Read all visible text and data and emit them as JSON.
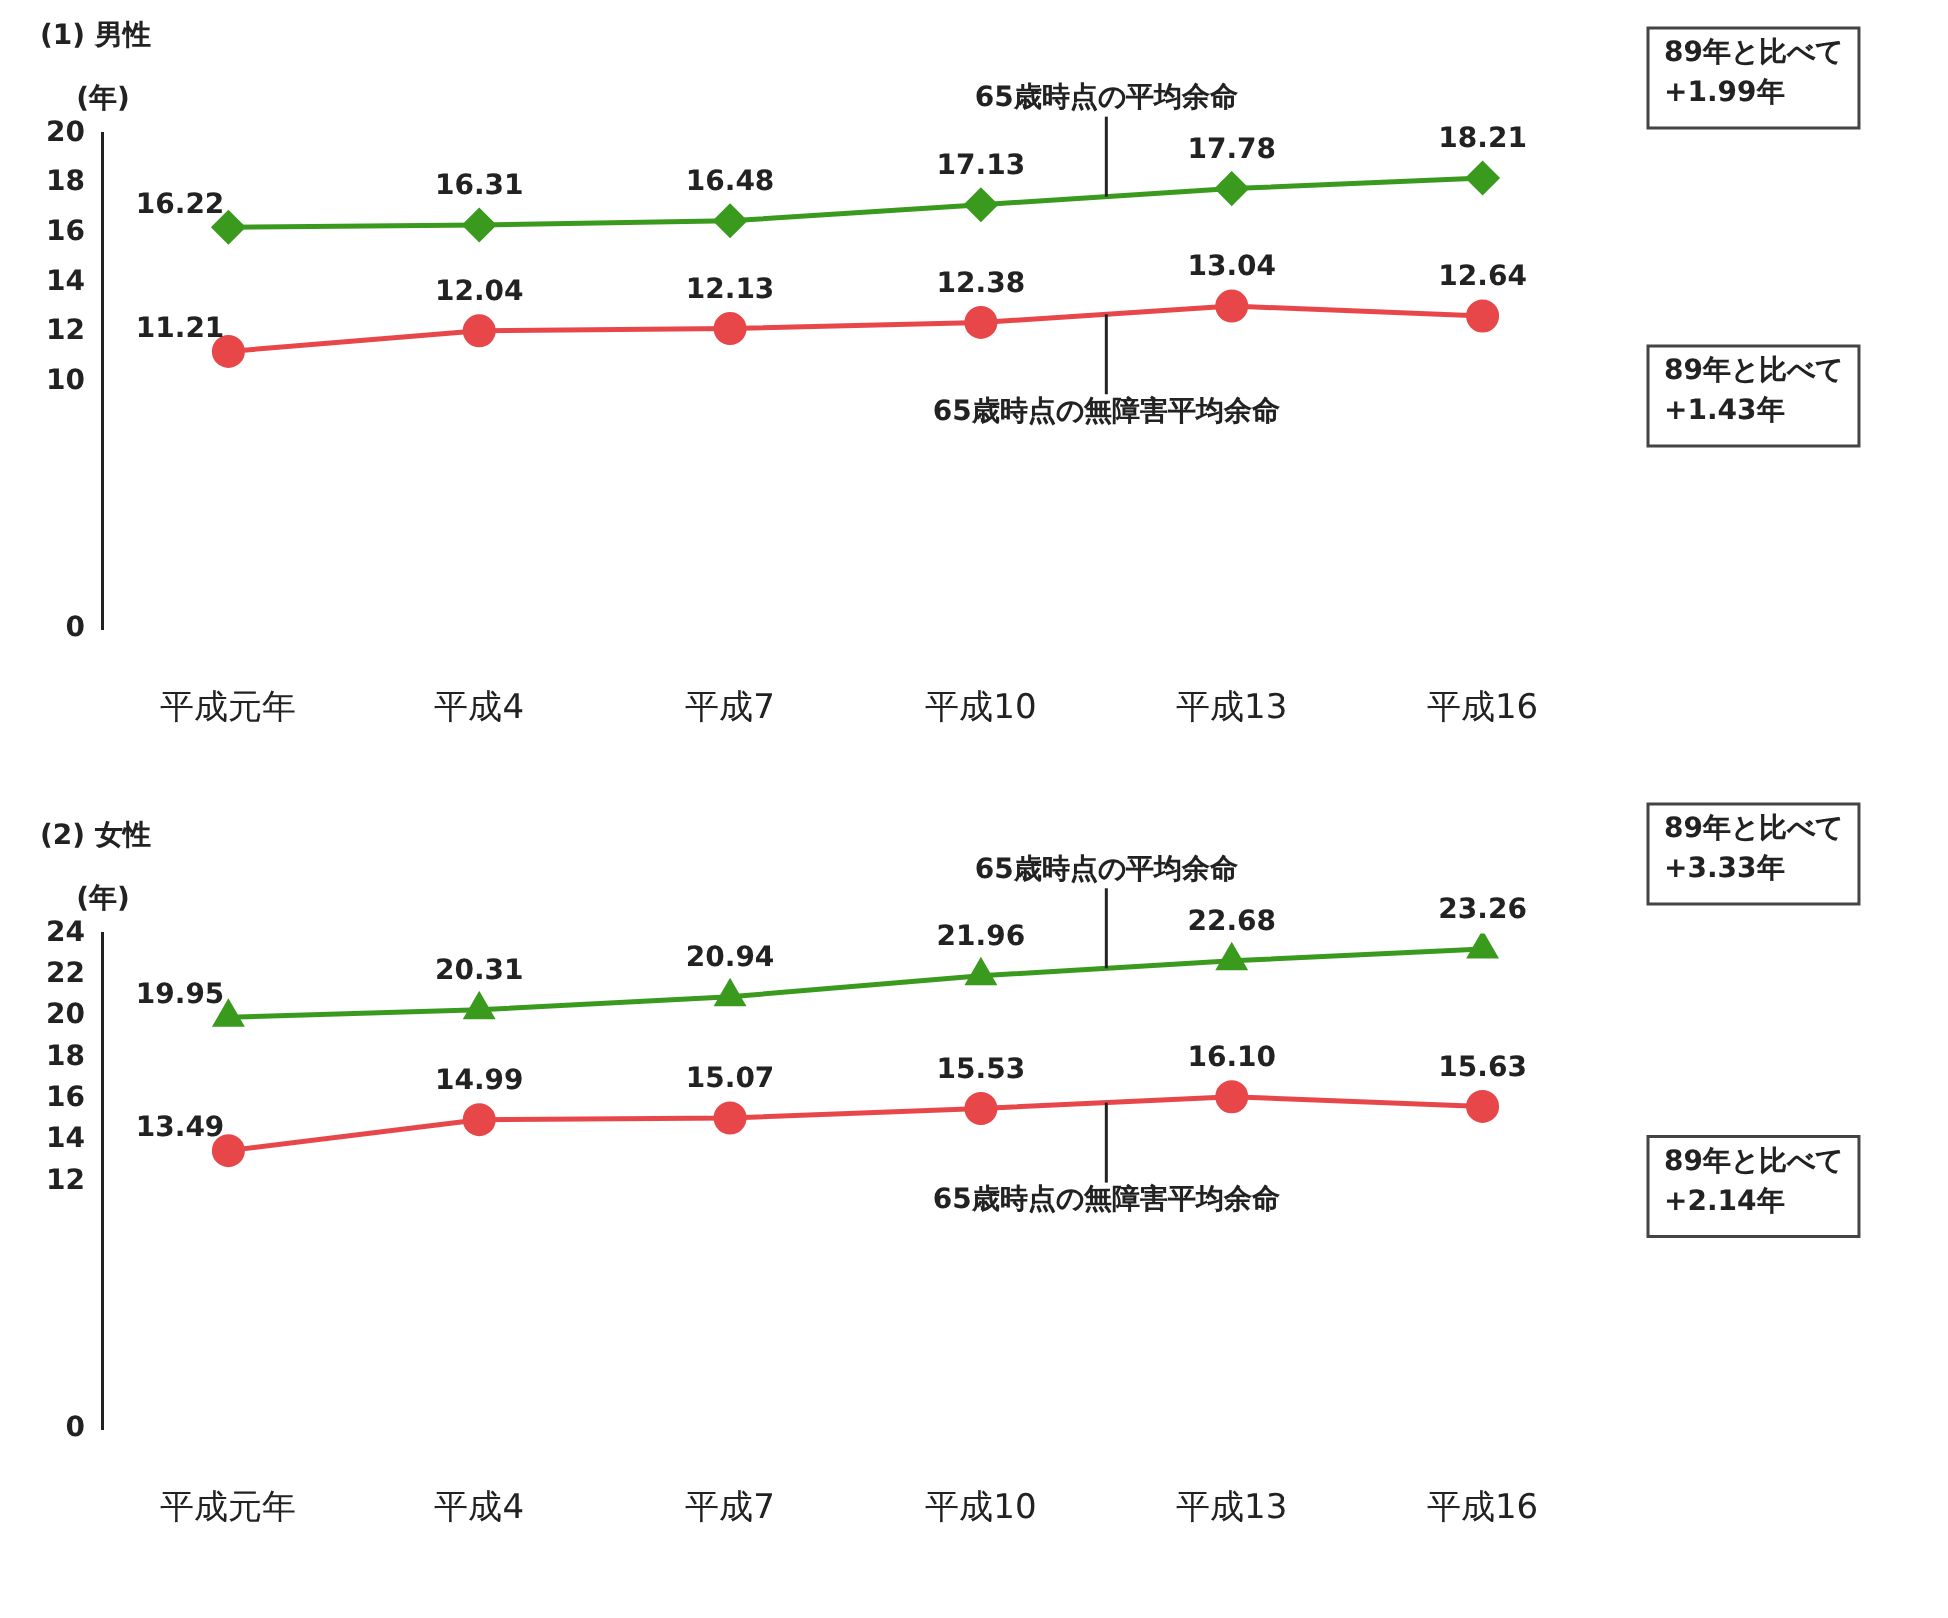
{
  "chart_data": [
    {
      "type": "line",
      "title": "(1) 男性",
      "ylabel": "(年)",
      "categories": [
        "平成元年",
        "平成4",
        "平成7",
        "平成10",
        "平成13",
        "平成16"
      ],
      "series": [
        {
          "name": "65歳時点の平均余命",
          "color": "#3a9a1e",
          "marker": "diamond",
          "values": [
            16.22,
            16.31,
            16.48,
            17.13,
            17.78,
            18.21
          ],
          "value_labels": [
            "16.22",
            "16.31",
            "16.48",
            "17.13",
            "17.78",
            "18.21"
          ]
        },
        {
          "name": "65歳時点の無障害平均余命",
          "color": "#e8474a",
          "marker": "circle",
          "values": [
            11.21,
            12.04,
            12.13,
            12.38,
            13.04,
            12.64
          ],
          "value_labels": [
            "11.21",
            "12.04",
            "12.13",
            "12.38",
            "13.04",
            "12.64"
          ]
        }
      ],
      "ylim": [
        0,
        20
      ],
      "yticks": [
        0,
        10,
        12,
        14,
        16,
        18,
        20
      ],
      "legend": false,
      "grid": false,
      "annotations": [
        "89年と比べて\n+1.99年",
        "89年と比べて\n+1.43年"
      ]
    },
    {
      "type": "line",
      "title": "(2) 女性",
      "ylabel": "(年)",
      "categories": [
        "平成元年",
        "平成4",
        "平成7",
        "平成10",
        "平成13",
        "平成16"
      ],
      "series": [
        {
          "name": "65歳時点の平均余命",
          "color": "#3a9a1e",
          "marker": "triangle",
          "values": [
            19.95,
            20.31,
            20.94,
            21.96,
            22.68,
            23.26
          ],
          "value_labels": [
            "19.95",
            "20.31",
            "20.94",
            "21.96",
            "22.68",
            "23.26"
          ]
        },
        {
          "name": "65歳時点の無障害平均余命",
          "color": "#e8474a",
          "marker": "circle",
          "values": [
            13.49,
            14.99,
            15.07,
            15.53,
            16.1,
            15.63
          ],
          "value_labels": [
            "13.49",
            "14.99",
            "15.07",
            "15.53",
            "16.10",
            "15.63"
          ]
        }
      ],
      "ylim": [
        0,
        24
      ],
      "yticks": [
        0,
        12,
        14,
        16,
        18,
        20,
        22,
        24
      ],
      "legend": false,
      "grid": false,
      "annotations": [
        "89年と比べて\n+3.33年",
        "89年と比べて\n+2.14年"
      ]
    }
  ]
}
